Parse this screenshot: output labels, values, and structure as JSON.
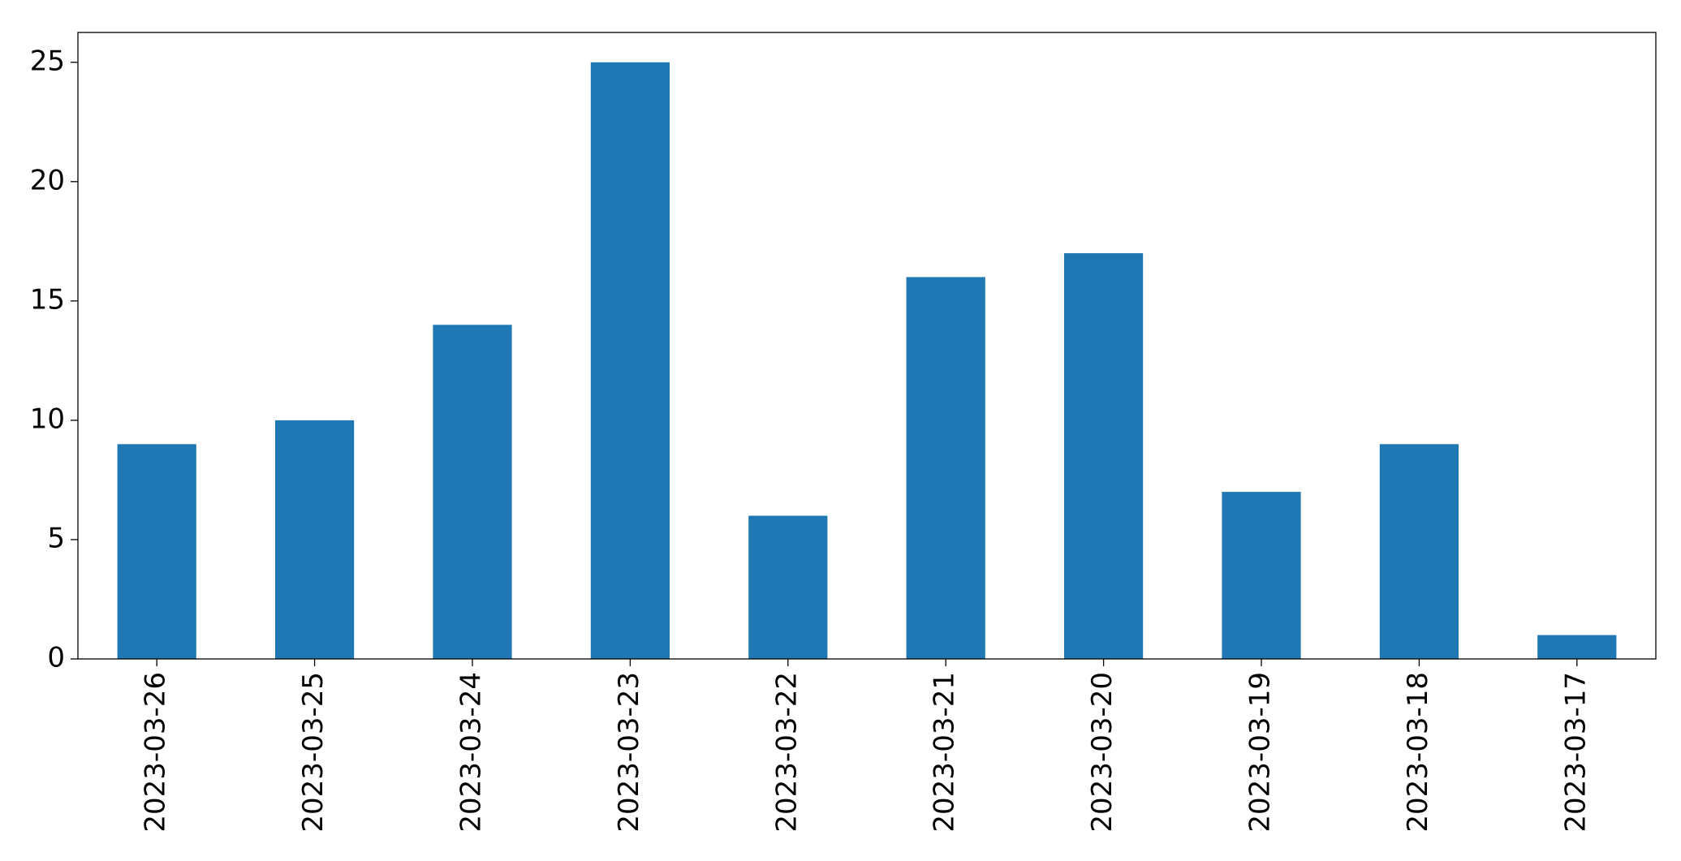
{
  "chart_data": {
    "type": "bar",
    "categories": [
      "2023-03-26",
      "2023-03-25",
      "2023-03-24",
      "2023-03-23",
      "2023-03-22",
      "2023-03-21",
      "2023-03-20",
      "2023-03-19",
      "2023-03-18",
      "2023-03-17"
    ],
    "values": [
      9,
      10,
      14,
      25,
      6,
      16,
      17,
      7,
      9,
      1
    ],
    "color": "#1f77b4",
    "ylim": [
      0,
      26.25
    ],
    "yticks": [
      0,
      5,
      10,
      15,
      20,
      25
    ],
    "grid": false
  }
}
